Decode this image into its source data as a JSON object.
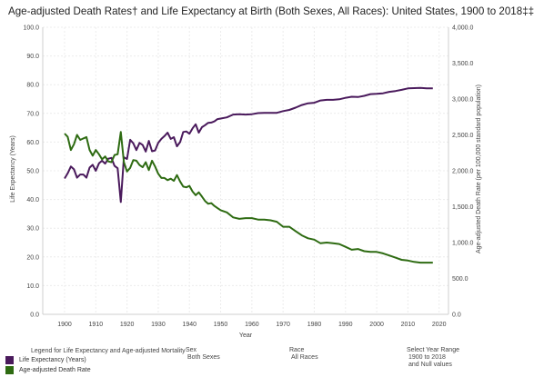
{
  "title": "Age-adjusted Death Rates† and Life Expectancy at Birth (Both Sexes, All Races): United States, 1900 to 2018‡‡",
  "chart_data": {
    "type": "line",
    "xlabel": "Year",
    "ylabel_left": "Life Expectancy (Years)",
    "ylabel_right": "Age-adjusted Death Rate (per 100,000 standard population)",
    "xlim": [
      1893,
      2023
    ],
    "ylim_left": [
      0,
      100
    ],
    "ylim_right": [
      0,
      4000
    ],
    "x_ticks": [
      "1900",
      "1910",
      "1920",
      "1930",
      "1940",
      "1950",
      "1960",
      "1970",
      "1980",
      "1990",
      "2000",
      "2010",
      "2020"
    ],
    "y_left_ticks": [
      "0.0",
      "10.0",
      "20.0",
      "30.0",
      "40.0",
      "50.0",
      "60.0",
      "70.0",
      "80.0",
      "90.0",
      "100.0"
    ],
    "y_right_ticks": [
      "0.0",
      "500.0",
      "1,000.0",
      "1,500.0",
      "2,000.0",
      "2,500.0",
      "3,000.0",
      "3,500.0",
      "4,000.0"
    ],
    "grid": true,
    "legend_position": "bottom-left",
    "series": [
      {
        "name": "Life Expectancy (Years)",
        "axis": "left",
        "color": "#4a1a5c",
        "x": [
          1900,
          1901,
          1902,
          1903,
          1904,
          1905,
          1906,
          1907,
          1908,
          1909,
          1910,
          1911,
          1912,
          1913,
          1914,
          1915,
          1916,
          1917,
          1918,
          1919,
          1920,
          1921,
          1922,
          1923,
          1924,
          1925,
          1926,
          1927,
          1928,
          1929,
          1930,
          1931,
          1932,
          1933,
          1934,
          1935,
          1936,
          1937,
          1938,
          1939,
          1940,
          1941,
          1942,
          1943,
          1944,
          1945,
          1946,
          1947,
          1948,
          1949,
          1950,
          1952,
          1954,
          1956,
          1958,
          1960,
          1962,
          1964,
          1966,
          1968,
          1970,
          1972,
          1974,
          1976,
          1978,
          1980,
          1982,
          1984,
          1986,
          1988,
          1990,
          1992,
          1994,
          1996,
          1998,
          2000,
          2002,
          2004,
          2006,
          2008,
          2010,
          2012,
          2014,
          2016,
          2018
        ],
        "y": [
          47.3,
          49.1,
          51.5,
          50.5,
          47.6,
          48.7,
          48.7,
          47.6,
          51.1,
          52.1,
          50.0,
          52.6,
          53.5,
          52.5,
          54.2,
          54.5,
          51.7,
          50.9,
          39.1,
          54.7,
          54.1,
          60.8,
          59.6,
          57.2,
          59.7,
          59.0,
          56.7,
          60.4,
          56.8,
          57.1,
          59.7,
          61.1,
          62.1,
          63.3,
          61.1,
          61.7,
          58.5,
          60.0,
          63.5,
          63.7,
          62.9,
          64.8,
          66.2,
          63.3,
          65.2,
          65.9,
          66.7,
          66.8,
          67.2,
          68.0,
          68.2,
          68.6,
          69.6,
          69.7,
          69.6,
          69.7,
          70.1,
          70.2,
          70.2,
          70.2,
          70.8,
          71.2,
          72.0,
          72.9,
          73.5,
          73.7,
          74.5,
          74.7,
          74.7,
          74.9,
          75.4,
          75.8,
          75.7,
          76.1,
          76.7,
          76.8,
          77.0,
          77.5,
          77.8,
          78.2,
          78.7,
          78.8,
          78.9,
          78.7,
          78.7
        ]
      },
      {
        "name": "Age-adjusted Death Rate",
        "axis": "right",
        "color": "#2e6b12",
        "x": [
          1900,
          1901,
          1902,
          1903,
          1904,
          1905,
          1906,
          1907,
          1908,
          1909,
          1910,
          1911,
          1912,
          1913,
          1914,
          1915,
          1916,
          1917,
          1918,
          1919,
          1920,
          1921,
          1922,
          1923,
          1924,
          1925,
          1926,
          1927,
          1928,
          1929,
          1930,
          1931,
          1932,
          1933,
          1934,
          1935,
          1936,
          1937,
          1938,
          1939,
          1940,
          1941,
          1942,
          1943,
          1944,
          1945,
          1946,
          1947,
          1948,
          1949,
          1950,
          1952,
          1954,
          1956,
          1958,
          1960,
          1962,
          1964,
          1966,
          1968,
          1970,
          1972,
          1974,
          1976,
          1978,
          1980,
          1982,
          1984,
          1986,
          1988,
          1990,
          1992,
          1994,
          1996,
          1998,
          2000,
          2002,
          2004,
          2006,
          2008,
          2010,
          2012,
          2014,
          2016,
          2018
        ],
        "y": [
          2518,
          2473,
          2290,
          2370,
          2500,
          2430,
          2450,
          2470,
          2290,
          2210,
          2290,
          2230,
          2160,
          2200,
          2130,
          2120,
          2220,
          2230,
          2540,
          2120,
          1990,
          2040,
          2150,
          2140,
          2080,
          2050,
          2120,
          2010,
          2140,
          2060,
          1960,
          1900,
          1900,
          1870,
          1890,
          1860,
          1940,
          1850,
          1780,
          1770,
          1790,
          1710,
          1660,
          1700,
          1640,
          1580,
          1540,
          1550,
          1510,
          1480,
          1450,
          1420,
          1350,
          1330,
          1340,
          1340,
          1320,
          1320,
          1310,
          1290,
          1220,
          1220,
          1160,
          1100,
          1060,
          1040,
          990,
          1000,
          990,
          980,
          940,
          900,
          910,
          880,
          870,
          870,
          850,
          820,
          790,
          760,
          750,
          730,
          720,
          720,
          720
        ]
      }
    ]
  },
  "legend": {
    "title": "Legend for Life Expectancy and Age-adjusted Mortality",
    "items": [
      {
        "label": "Life Expectancy (Years)",
        "color": "#4a1a5c"
      },
      {
        "label": "Age-adjusted Death Rate",
        "color": "#2e6b12"
      }
    ]
  },
  "filters": {
    "sex": {
      "label": "Sex",
      "value": "Both Sexes"
    },
    "race": {
      "label": "Race",
      "value": "All Races"
    },
    "year_range": {
      "label": "Select Year Range",
      "value_line1": "1900 to 2018",
      "value_line2": "and Null values"
    }
  }
}
